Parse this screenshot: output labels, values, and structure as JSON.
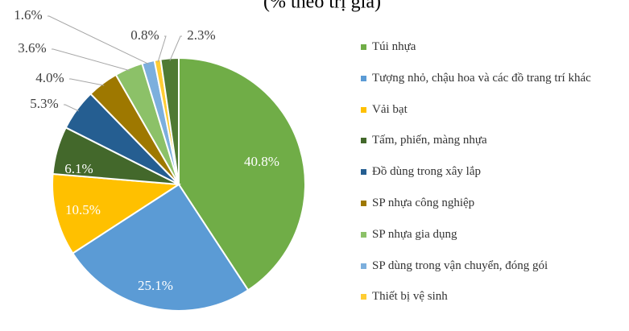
{
  "chart_data": {
    "type": "pie",
    "title": "(% theo trị giá)",
    "categories": [
      "Túi nhựa",
      "Tượng nhỏ, chậu hoa và các đồ trang trí khác",
      "Vải bạt",
      "Tấm, phiến, màng nhựa",
      "Đồ dùng trong xây lắp",
      "SP nhựa công nghiệp",
      "SP nhựa gia dụng",
      "SP dùng trong vận chuyển, đóng gói",
      "Thiết bị vệ sinh",
      null
    ],
    "values": [
      40.8,
      25.1,
      10.5,
      6.1,
      5.3,
      4.0,
      3.6,
      1.6,
      0.8,
      2.3
    ],
    "value_labels": [
      "40.8%",
      "25.1%",
      "10.5%",
      "6.1%",
      "5.3%",
      "4.0%",
      "3.6%",
      "1.6%",
      "0.8%",
      "2.3%"
    ],
    "colors": [
      "#70ad47",
      "#5b9bd5",
      "#ffc000",
      "#43682b",
      "#255e91",
      "#9e7800",
      "#8cc168",
      "#7cafdd",
      "#ffcd33",
      "#4f7a33"
    ],
    "legend": "right"
  }
}
